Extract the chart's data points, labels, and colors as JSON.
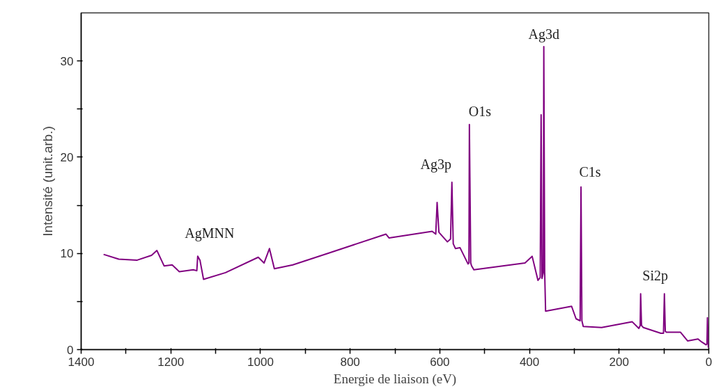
{
  "chart_data": {
    "type": "line",
    "xlabel": "Energie de liaison (eV)",
    "ylabel": "Intensité (unit.arb.)",
    "xlim": [
      1400,
      0
    ],
    "ylim": [
      0,
      35
    ],
    "xticks": [
      1400,
      {
        "value": 1300,
        "label": null
      },
      1200,
      {
        "value": 1100,
        "label": null
      },
      1000,
      {
        "value": 900,
        "label": null
      },
      800,
      {
        "value": 700,
        "label": null
      },
      600,
      {
        "value": 500,
        "label": null
      },
      400,
      {
        "value": 300,
        "label": null
      },
      200,
      {
        "value": 100,
        "label": null
      },
      0
    ],
    "yticks": [
      0,
      {
        "value": 5,
        "label": null
      },
      10,
      {
        "value": 15,
        "label": null
      },
      20,
      {
        "value": 25,
        "label": null
      },
      30
    ],
    "grid": false,
    "line_style": "solid",
    "marker": "none",
    "series": [
      {
        "color": "#800080",
        "x": [
          1350,
          1316,
          1275,
          1243,
          1231,
          1215,
          1197,
          1181,
          1150,
          1142,
          1140,
          1135,
          1127,
          1078,
          1005,
          992,
          980,
          969,
          928,
          850,
          720,
          713,
          617,
          609,
          606,
          602,
          583,
          576,
          573,
          570,
          565,
          555,
          537,
          535,
          534,
          531,
          529,
          524,
          410,
          394,
          381,
          376,
          374,
          372,
          369,
          368,
          366,
          364,
          306,
          296,
          287,
          285,
          283,
          280,
          239,
          171,
          156,
          153,
          152,
          150,
          146,
          107,
          101,
          99,
          97,
          94,
          63,
          47,
          24,
          16,
          6,
          4,
          3,
          1
        ],
        "values": [
          9.9,
          9.4,
          9.3,
          9.8,
          10.3,
          8.7,
          8.8,
          8.1,
          8.3,
          8.2,
          9.7,
          9.3,
          7.3,
          8.0,
          9.6,
          9.0,
          10.5,
          8.4,
          8.8,
          10.0,
          12.0,
          11.6,
          12.3,
          12.0,
          15.3,
          12.2,
          11.2,
          11.5,
          17.4,
          11.0,
          10.5,
          10.6,
          8.9,
          9.0,
          23.4,
          9.0,
          8.7,
          8.3,
          9.0,
          9.7,
          7.2,
          7.5,
          24.4,
          7.4,
          8.0,
          31.5,
          8.0,
          4.0,
          4.5,
          3.2,
          3.0,
          16.9,
          3.0,
          2.4,
          2.3,
          2.9,
          2.2,
          2.5,
          5.8,
          2.5,
          2.3,
          1.7,
          1.7,
          5.8,
          1.9,
          1.8,
          1.8,
          0.9,
          1.1,
          0.8,
          0.5,
          0.6,
          3.3,
          0.2
        ]
      }
    ],
    "annotations": [
      {
        "text": "AgMNN",
        "x": 1140,
        "y": 9.7
      },
      {
        "text": "Ag3p",
        "x": 573,
        "y": 17.4
      },
      {
        "text": "O1s",
        "x": 534,
        "y": 23.4
      },
      {
        "text": "Ag3d",
        "x": 368,
        "y": 31.5
      },
      {
        "text": "C1s",
        "x": 285,
        "y": 16.9
      },
      {
        "text": "Si2p",
        "x": 152,
        "y": 5.8
      }
    ]
  }
}
